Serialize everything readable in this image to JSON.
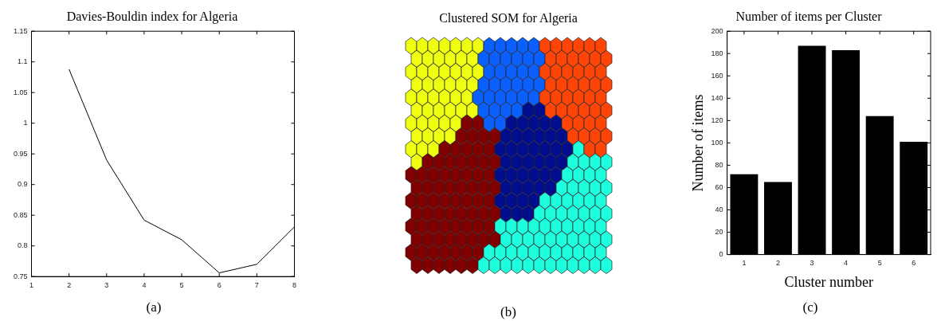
{
  "chart_data": [
    {
      "type": "line",
      "title": "Davies-Bouldin index for Algeria",
      "x": [
        2,
        3,
        4,
        5,
        6,
        7,
        8
      ],
      "series": [
        {
          "color": "#000000",
          "values": [
            1.088,
            0.94,
            0.842,
            0.81,
            0.756,
            0.77,
            0.831
          ]
        }
      ],
      "xlim": [
        1,
        8
      ],
      "xticks": [
        1,
        2,
        3,
        4,
        5,
        6,
        7,
        8
      ],
      "ylim": [
        0.75,
        1.15
      ],
      "yticks": [
        0.75,
        0.8,
        0.85,
        0.9,
        0.95,
        1,
        1.05,
        1.1,
        1.15
      ],
      "grid": false,
      "legend": false,
      "marker": "none",
      "annotations": [
        "(a)"
      ]
    },
    {
      "type": "other",
      "title": "Clustered SOM for Algeria",
      "annotations": [
        "(b)"
      ]
    },
    {
      "type": "bar",
      "title": "Number of items per Cluster",
      "xlabel": "Cluster number",
      "ylabel": "Number of items",
      "categories": [
        "1",
        "2",
        "3",
        "4",
        "5",
        "6"
      ],
      "series": [
        {
          "color": "#000000",
          "values": [
            72,
            65,
            187,
            183,
            124,
            101
          ]
        }
      ],
      "ylim": [
        0,
        200
      ],
      "yticks": [
        0,
        20,
        40,
        60,
        80,
        100,
        120,
        140,
        160,
        180,
        200
      ],
      "grid": false,
      "legend": false,
      "annotations": [
        "(c)"
      ]
    }
  ]
}
